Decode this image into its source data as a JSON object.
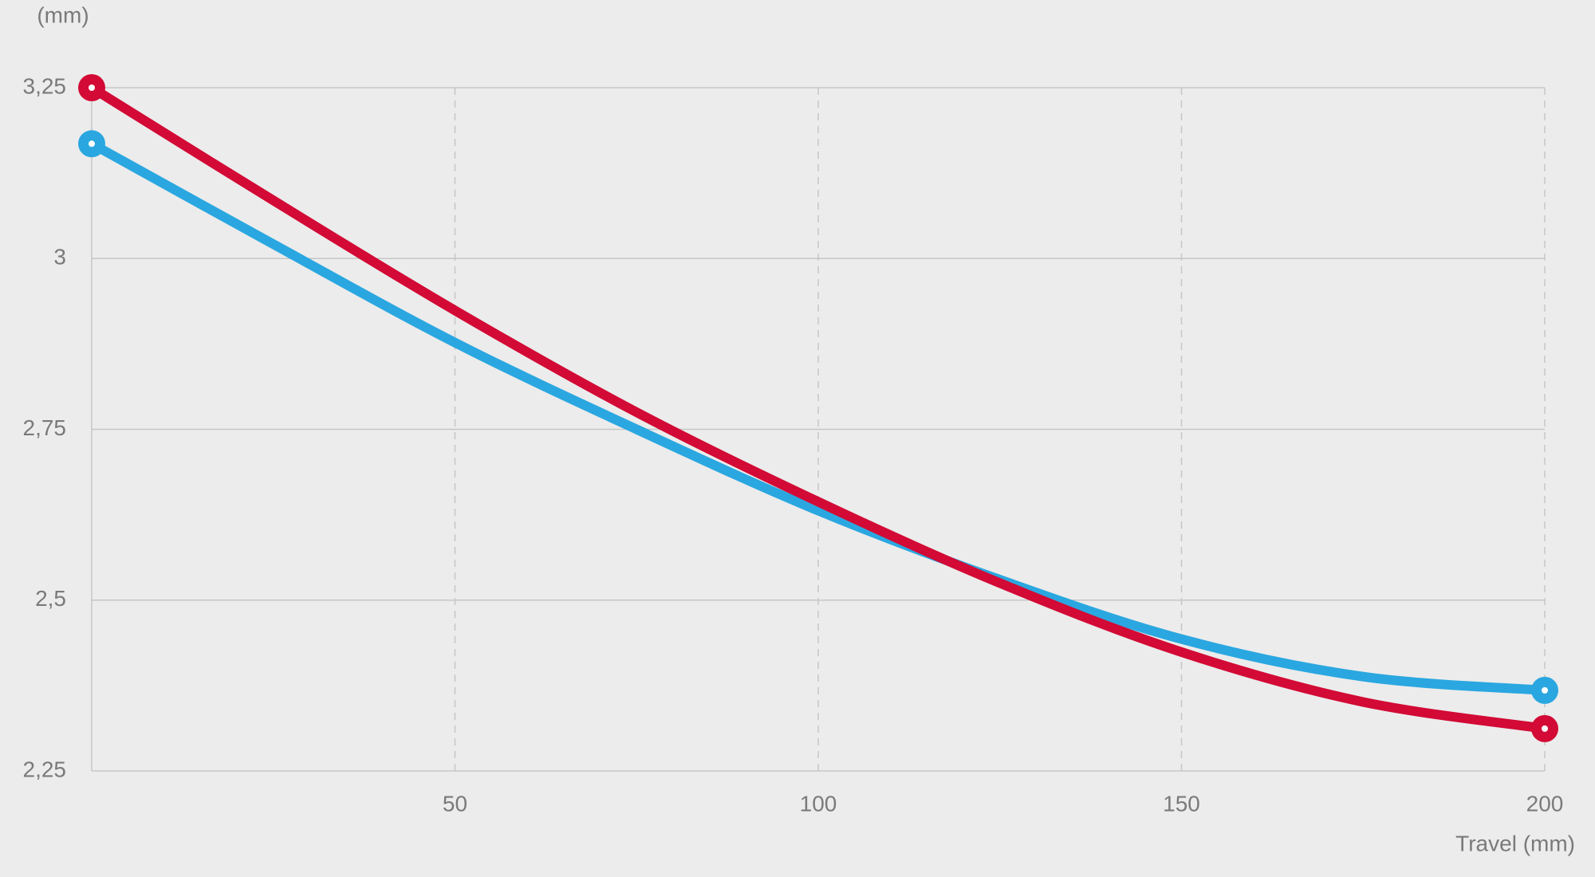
{
  "chart_data": {
    "type": "line",
    "y_label": "(mm)",
    "x_label": "Travel (mm)",
    "x": [
      0,
      25,
      50,
      75,
      100,
      125,
      150,
      175,
      200
    ],
    "series": [
      {
        "color": "#2aa7e0",
        "values": [
          3.168,
          3.021,
          2.877,
          2.75,
          2.631,
          2.53,
          2.443,
          2.388,
          2.368
        ]
      },
      {
        "color": "#d20a35",
        "values": [
          3.25,
          3.085,
          2.924,
          2.775,
          2.644,
          2.525,
          2.424,
          2.351,
          2.312
        ]
      }
    ],
    "xlim": [
      0,
      200
    ],
    "xticks": [
      50,
      100,
      150,
      200
    ],
    "ylim": [
      2.25,
      3.25
    ],
    "yticks": [
      {
        "value": 2.25,
        "label": "2,25"
      },
      {
        "value": 2.5,
        "label": "2,5"
      },
      {
        "value": 2.75,
        "label": "2,75"
      },
      3,
      {
        "value": 3.25,
        "label": "3,25"
      }
    ],
    "grid": true
  }
}
